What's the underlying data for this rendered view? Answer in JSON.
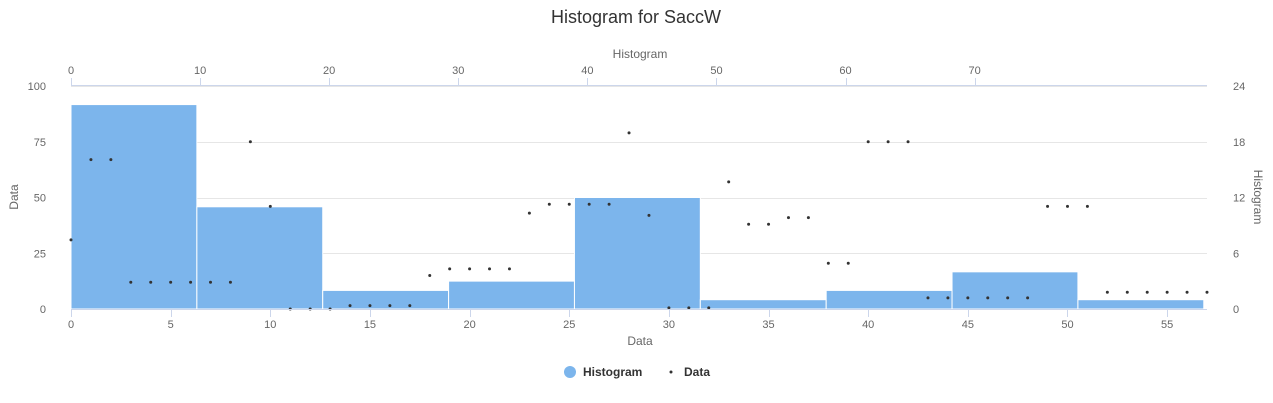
{
  "chart_data": {
    "type": "bar",
    "title": "Histogram for SaccW",
    "colors": {
      "histogram": "#7cb5ec",
      "data": "#333333"
    },
    "x_axis": {
      "title": "Data",
      "range": [
        0,
        57
      ],
      "ticks": [
        0,
        5,
        10,
        15,
        20,
        25,
        30,
        35,
        40,
        45,
        50,
        55
      ]
    },
    "y_axis": {
      "title": "Data",
      "range": [
        0,
        100
      ],
      "ticks": [
        0,
        25,
        50,
        75,
        100
      ]
    },
    "x2_axis": {
      "title": "Histogram",
      "range": [
        0,
        88
      ],
      "ticks": [
        0,
        10,
        20,
        30,
        40,
        50,
        60,
        70
      ]
    },
    "y2_axis": {
      "title": "Histogram",
      "range": [
        0,
        24
      ],
      "ticks": [
        0,
        6,
        12,
        18,
        24
      ]
    },
    "series": [
      {
        "name": "Histogram",
        "kind": "bar",
        "bins": [
          {
            "x1": 0.0,
            "x2": 9.75,
            "count": 22
          },
          {
            "x1": 9.75,
            "x2": 19.5,
            "count": 11
          },
          {
            "x1": 19.5,
            "x2": 29.25,
            "count": 2
          },
          {
            "x1": 29.25,
            "x2": 39.0,
            "count": 3
          },
          {
            "x1": 39.0,
            "x2": 48.75,
            "count": 12
          },
          {
            "x1": 48.75,
            "x2": 58.5,
            "count": 1
          },
          {
            "x1": 58.5,
            "x2": 68.25,
            "count": 2
          },
          {
            "x1": 68.25,
            "x2": 78.0,
            "count": 4
          },
          {
            "x1": 78.0,
            "x2": 87.75,
            "count": 1
          }
        ]
      },
      {
        "name": "Data",
        "kind": "scatter",
        "points": [
          [
            0,
            31
          ],
          [
            1,
            67
          ],
          [
            2,
            67
          ],
          [
            3,
            12
          ],
          [
            4,
            12
          ],
          [
            5,
            12
          ],
          [
            6,
            12
          ],
          [
            7,
            12
          ],
          [
            8,
            12
          ],
          [
            9,
            75
          ],
          [
            10,
            46
          ],
          [
            11,
            0
          ],
          [
            12,
            0
          ],
          [
            13,
            0
          ],
          [
            14,
            1.5
          ],
          [
            15,
            1.5
          ],
          [
            16,
            1.5
          ],
          [
            17,
            1.5
          ],
          [
            18,
            15
          ],
          [
            19,
            18
          ],
          [
            20,
            18
          ],
          [
            21,
            18
          ],
          [
            22,
            18
          ],
          [
            23,
            43
          ],
          [
            24,
            47
          ],
          [
            25,
            47
          ],
          [
            26,
            47
          ],
          [
            27,
            47
          ],
          [
            28,
            79
          ],
          [
            29,
            42
          ],
          [
            30,
            0.5
          ],
          [
            31,
            0.5
          ],
          [
            32,
            0.5
          ],
          [
            33,
            57
          ],
          [
            34,
            38
          ],
          [
            35,
            38
          ],
          [
            36,
            41
          ],
          [
            37,
            41
          ],
          [
            38,
            20.5
          ],
          [
            39,
            20.5
          ],
          [
            40,
            75
          ],
          [
            41,
            75
          ],
          [
            42,
            75
          ],
          [
            43,
            5
          ],
          [
            44,
            5
          ],
          [
            45,
            5
          ],
          [
            46,
            5
          ],
          [
            47,
            5
          ],
          [
            48,
            5
          ],
          [
            49,
            46
          ],
          [
            50,
            46
          ],
          [
            51,
            46
          ],
          [
            52,
            7.5
          ],
          [
            53,
            7.5
          ],
          [
            54,
            7.5
          ],
          [
            55,
            7.5
          ],
          [
            56,
            7.5
          ],
          [
            57,
            7.5
          ]
        ]
      }
    ],
    "legend": {
      "placement": "bottom-center",
      "items": [
        "Histogram",
        "Data"
      ]
    },
    "grid": true
  }
}
